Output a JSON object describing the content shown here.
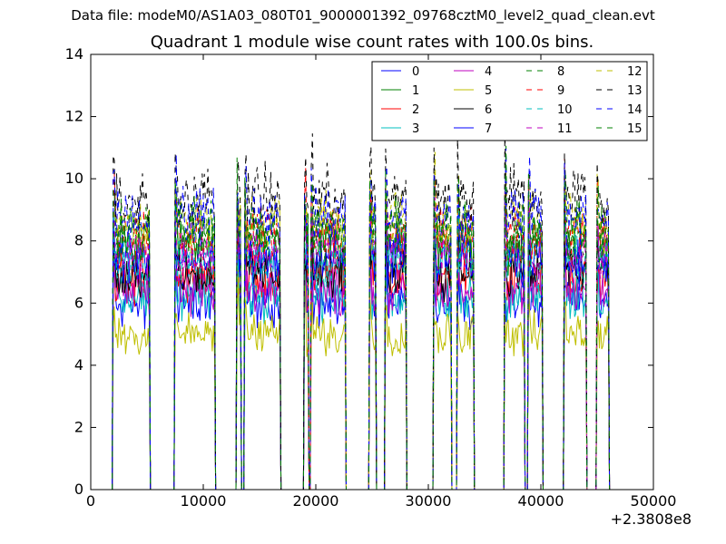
{
  "figure": {
    "suptitle": "Data file: modeM0/AS1A03_080T01_9000001392_09768cztM0_level2_quad_clean.evt"
  },
  "chart_data": {
    "type": "line",
    "title": "Quadrant 1 module wise count rates with 100.0s bins.",
    "xlabel": "",
    "ylabel": "",
    "x_offset_label": "+2.3808e8",
    "xlim": [
      0,
      50000
    ],
    "ylim": [
      0,
      14
    ],
    "xticks": [
      0,
      10000,
      20000,
      30000,
      40000,
      50000
    ],
    "xtick_labels": [
      "0",
      "10000",
      "20000",
      "30000",
      "40000",
      "50000"
    ],
    "yticks": [
      0,
      2,
      4,
      6,
      8,
      10,
      12,
      14
    ],
    "ytick_labels": [
      "0",
      "2",
      "4",
      "6",
      "8",
      "10",
      "12",
      "14"
    ],
    "legend_position": "upper-right",
    "legend_columns": 4,
    "on_segments": [
      [
        2000,
        5200
      ],
      [
        7500,
        11000
      ],
      [
        13000,
        13300
      ],
      [
        13700,
        16800
      ],
      [
        19000,
        19300
      ],
      [
        19600,
        22600
      ],
      [
        24800,
        25300
      ],
      [
        26200,
        28000
      ],
      [
        30500,
        32000
      ],
      [
        32600,
        34000
      ],
      [
        36800,
        38500
      ],
      [
        38900,
        40100
      ],
      [
        42100,
        44000
      ],
      [
        45000,
        46000
      ]
    ],
    "series": [
      {
        "name": "0",
        "color": "#0000ff",
        "dash": "solid",
        "base_level": 6.0
      },
      {
        "name": "1",
        "color": "#008000",
        "dash": "solid",
        "base_level": 7.8
      },
      {
        "name": "2",
        "color": "#ff0000",
        "dash": "solid",
        "base_level": 6.8
      },
      {
        "name": "3",
        "color": "#00bfbf",
        "dash": "solid",
        "base_level": 6.2
      },
      {
        "name": "4",
        "color": "#bf00bf",
        "dash": "solid",
        "base_level": 6.4
      },
      {
        "name": "5",
        "color": "#bfbf00",
        "dash": "solid",
        "base_level": 5.0
      },
      {
        "name": "6",
        "color": "#000000",
        "dash": "solid",
        "base_level": 7.0
      },
      {
        "name": "7",
        "color": "#0000ff",
        "dash": "solid",
        "base_level": 7.4
      },
      {
        "name": "8",
        "color": "#008000",
        "dash": "dashed",
        "base_level": 8.1
      },
      {
        "name": "9",
        "color": "#ff0000",
        "dash": "dashed",
        "base_level": 8.2
      },
      {
        "name": "10",
        "color": "#00bfbf",
        "dash": "dashed",
        "base_level": 7.3
      },
      {
        "name": "11",
        "color": "#bf00bf",
        "dash": "dashed",
        "base_level": 7.6
      },
      {
        "name": "12",
        "color": "#bfbf00",
        "dash": "dashed",
        "base_level": 8.6
      },
      {
        "name": "13",
        "color": "#000000",
        "dash": "dashed",
        "base_level": 9.4
      },
      {
        "name": "14",
        "color": "#0000ff",
        "dash": "dashed",
        "base_level": 8.8
      },
      {
        "name": "15",
        "color": "#008000",
        "dash": "dashed",
        "base_level": 8.4
      }
    ]
  }
}
